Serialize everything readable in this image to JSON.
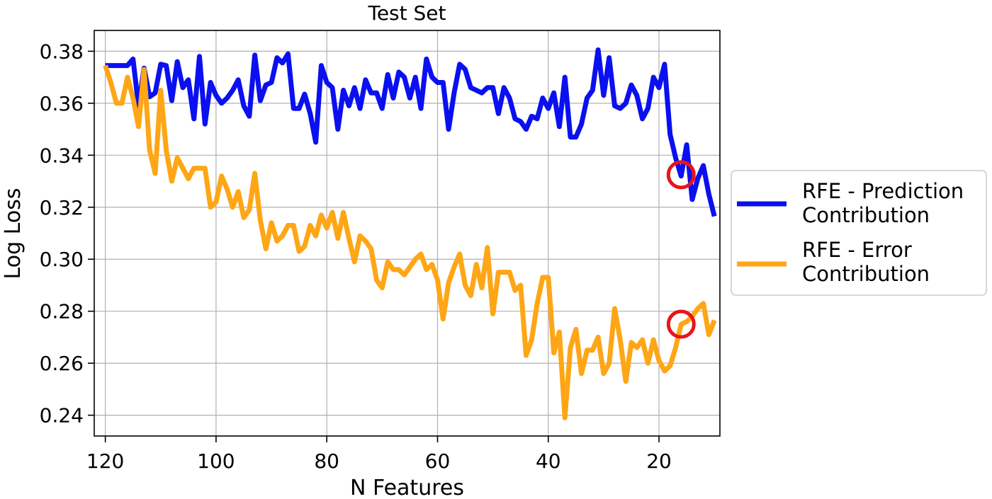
{
  "chart_data": {
    "type": "line",
    "title": "Test Set",
    "xlabel": "N Features",
    "ylabel": "Log Loss",
    "xlim": [
      9,
      122
    ],
    "ylim": [
      0.232,
      0.388
    ],
    "x_inverted": true,
    "xticks": [
      120,
      100,
      80,
      60,
      40,
      20
    ],
    "yticks": [
      0.24,
      0.26,
      0.28,
      0.3,
      0.32,
      0.34,
      0.36,
      0.38
    ],
    "xtick_labels": [
      "120",
      "100",
      "80",
      "60",
      "40",
      "20"
    ],
    "ytick_labels": [
      "0.24",
      "0.26",
      "0.28",
      "0.30",
      "0.32",
      "0.34",
      "0.36",
      "0.38"
    ],
    "grid": true,
    "legend_position": "outside right",
    "series": [
      {
        "name": "RFE - Prediction Contribution",
        "legend_lines": [
          "RFE - Prediction",
          "Contribution"
        ],
        "color": "#0a10f0",
        "points": [
          [
            120,
            0.3745
          ],
          [
            119,
            0.3745
          ],
          [
            118,
            0.3745
          ],
          [
            117,
            0.3745
          ],
          [
            116,
            0.3745
          ],
          [
            115,
            0.377
          ],
          [
            114,
            0.359
          ],
          [
            113,
            0.3735
          ],
          [
            112,
            0.3625
          ],
          [
            111,
            0.364
          ],
          [
            110,
            0.375
          ],
          [
            109,
            0.3745
          ],
          [
            108,
            0.361
          ],
          [
            107,
            0.376
          ],
          [
            106,
            0.366
          ],
          [
            105,
            0.369
          ],
          [
            104,
            0.354
          ],
          [
            103,
            0.378
          ],
          [
            102,
            0.352
          ],
          [
            101,
            0.368
          ],
          [
            100,
            0.363
          ],
          [
            99,
            0.36
          ],
          [
            98,
            0.362
          ],
          [
            97,
            0.365
          ],
          [
            96,
            0.369
          ],
          [
            95,
            0.359
          ],
          [
            94,
            0.355
          ],
          [
            93,
            0.3785
          ],
          [
            92,
            0.361
          ],
          [
            91,
            0.367
          ],
          [
            90,
            0.368
          ],
          [
            89,
            0.3775
          ],
          [
            88,
            0.3755
          ],
          [
            87,
            0.379
          ],
          [
            86,
            0.358
          ],
          [
            85,
            0.358
          ],
          [
            84,
            0.3635
          ],
          [
            83,
            0.356
          ],
          [
            82,
            0.345
          ],
          [
            81,
            0.3745
          ],
          [
            80,
            0.368
          ],
          [
            79,
            0.366
          ],
          [
            78,
            0.35
          ],
          [
            77,
            0.365
          ],
          [
            76,
            0.359
          ],
          [
            75,
            0.366
          ],
          [
            74,
            0.358
          ],
          [
            73,
            0.369
          ],
          [
            72,
            0.364
          ],
          [
            71,
            0.364
          ],
          [
            70,
            0.358
          ],
          [
            69,
            0.371
          ],
          [
            68,
            0.362
          ],
          [
            67,
            0.372
          ],
          [
            66,
            0.37
          ],
          [
            65,
            0.362
          ],
          [
            64,
            0.37
          ],
          [
            63,
            0.358
          ],
          [
            62,
            0.377
          ],
          [
            61,
            0.37
          ],
          [
            60,
            0.368
          ],
          [
            59,
            0.368
          ],
          [
            58,
            0.35
          ],
          [
            57,
            0.364
          ],
          [
            56,
            0.375
          ],
          [
            55,
            0.373
          ],
          [
            54,
            0.366
          ],
          [
            53,
            0.365
          ],
          [
            52,
            0.364
          ],
          [
            51,
            0.366
          ],
          [
            50,
            0.366
          ],
          [
            49,
            0.356
          ],
          [
            48,
            0.366
          ],
          [
            47,
            0.362
          ],
          [
            46,
            0.354
          ],
          [
            45,
            0.353
          ],
          [
            44,
            0.35
          ],
          [
            43,
            0.355
          ],
          [
            42,
            0.354
          ],
          [
            41,
            0.362
          ],
          [
            40,
            0.358
          ],
          [
            39,
            0.364
          ],
          [
            38,
            0.351
          ],
          [
            37,
            0.37
          ],
          [
            36,
            0.347
          ],
          [
            35,
            0.347
          ],
          [
            34,
            0.352
          ],
          [
            33,
            0.362
          ],
          [
            32,
            0.365
          ],
          [
            31,
            0.3805
          ],
          [
            30,
            0.363
          ],
          [
            29,
            0.3775
          ],
          [
            28,
            0.359
          ],
          [
            27,
            0.358
          ],
          [
            26,
            0.36
          ],
          [
            25,
            0.367
          ],
          [
            24,
            0.363
          ],
          [
            23,
            0.354
          ],
          [
            22,
            0.358
          ],
          [
            21,
            0.37
          ],
          [
            20,
            0.366
          ],
          [
            19,
            0.375
          ],
          [
            18,
            0.348
          ],
          [
            17,
            0.339
          ],
          [
            16,
            0.332
          ],
          [
            15,
            0.344
          ],
          [
            14,
            0.323
          ],
          [
            13,
            0.331
          ],
          [
            12,
            0.336
          ],
          [
            11,
            0.325
          ],
          [
            10,
            0.3165
          ]
        ]
      },
      {
        "name": "RFE - Error Contribution",
        "legend_lines": [
          "RFE - Error",
          "Contribution"
        ],
        "color": "#fea615",
        "points": [
          [
            120,
            0.3745
          ],
          [
            119,
            0.368
          ],
          [
            118,
            0.36
          ],
          [
            117,
            0.36
          ],
          [
            116,
            0.37
          ],
          [
            115,
            0.362
          ],
          [
            114,
            0.351
          ],
          [
            113,
            0.373
          ],
          [
            112,
            0.342
          ],
          [
            111,
            0.333
          ],
          [
            110,
            0.365
          ],
          [
            109,
            0.342
          ],
          [
            108,
            0.33
          ],
          [
            107,
            0.339
          ],
          [
            106,
            0.335
          ],
          [
            105,
            0.331
          ],
          [
            104,
            0.335
          ],
          [
            103,
            0.335
          ],
          [
            102,
            0.335
          ],
          [
            101,
            0.32
          ],
          [
            100,
            0.322
          ],
          [
            99,
            0.332
          ],
          [
            98,
            0.327
          ],
          [
            97,
            0.32
          ],
          [
            96,
            0.326
          ],
          [
            95,
            0.316
          ],
          [
            94,
            0.319
          ],
          [
            93,
            0.333
          ],
          [
            92,
            0.315
          ],
          [
            91,
            0.304
          ],
          [
            90,
            0.314
          ],
          [
            89,
            0.307
          ],
          [
            88,
            0.309
          ],
          [
            87,
            0.313
          ],
          [
            86,
            0.313
          ],
          [
            85,
            0.303
          ],
          [
            84,
            0.305
          ],
          [
            83,
            0.313
          ],
          [
            82,
            0.309
          ],
          [
            81,
            0.317
          ],
          [
            80,
            0.312
          ],
          [
            79,
            0.318
          ],
          [
            78,
            0.308
          ],
          [
            77,
            0.318
          ],
          [
            76,
            0.308
          ],
          [
            75,
            0.299
          ],
          [
            74,
            0.309
          ],
          [
            73,
            0.307
          ],
          [
            72,
            0.304
          ],
          [
            71,
            0.292
          ],
          [
            70,
            0.289
          ],
          [
            69,
            0.299
          ],
          [
            68,
            0.296
          ],
          [
            67,
            0.296
          ],
          [
            66,
            0.294
          ],
          [
            65,
            0.297
          ],
          [
            64,
            0.3
          ],
          [
            63,
            0.302
          ],
          [
            62,
            0.296
          ],
          [
            61,
            0.298
          ],
          [
            60,
            0.292
          ],
          [
            59,
            0.277
          ],
          [
            58,
            0.291
          ],
          [
            57,
            0.297
          ],
          [
            56,
            0.302
          ],
          [
            55,
            0.29
          ],
          [
            54,
            0.286
          ],
          [
            53,
            0.298
          ],
          [
            52,
            0.289
          ],
          [
            51,
            0.3045
          ],
          [
            50,
            0.279
          ],
          [
            49,
            0.295
          ],
          [
            48,
            0.295
          ],
          [
            47,
            0.295
          ],
          [
            46,
            0.288
          ],
          [
            45,
            0.29
          ],
          [
            44,
            0.263
          ],
          [
            43,
            0.269
          ],
          [
            42,
            0.283
          ],
          [
            41,
            0.293
          ],
          [
            40,
            0.293
          ],
          [
            39,
            0.264
          ],
          [
            38,
            0.272
          ],
          [
            37,
            0.239
          ],
          [
            36,
            0.266
          ],
          [
            35,
            0.273
          ],
          [
            34,
            0.256
          ],
          [
            33,
            0.265
          ],
          [
            32,
            0.265
          ],
          [
            31,
            0.27
          ],
          [
            30,
            0.256
          ],
          [
            29,
            0.26
          ],
          [
            28,
            0.281
          ],
          [
            27,
            0.269
          ],
          [
            26,
            0.253
          ],
          [
            25,
            0.268
          ],
          [
            24,
            0.266
          ],
          [
            23,
            0.269
          ],
          [
            22,
            0.26
          ],
          [
            21,
            0.269
          ],
          [
            20,
            0.261
          ],
          [
            19,
            0.257
          ],
          [
            18,
            0.259
          ],
          [
            17,
            0.266
          ],
          [
            16,
            0.275
          ],
          [
            15,
            0.276
          ],
          [
            14,
            0.278
          ],
          [
            13,
            0.281
          ],
          [
            12,
            0.283
          ],
          [
            11,
            0.271
          ],
          [
            10,
            0.2765
          ]
        ]
      }
    ],
    "markers": [
      {
        "x": 16,
        "y": 0.3325,
        "color": "#e8141b"
      },
      {
        "x": 16,
        "y": 0.275,
        "color": "#e8141b"
      }
    ]
  }
}
